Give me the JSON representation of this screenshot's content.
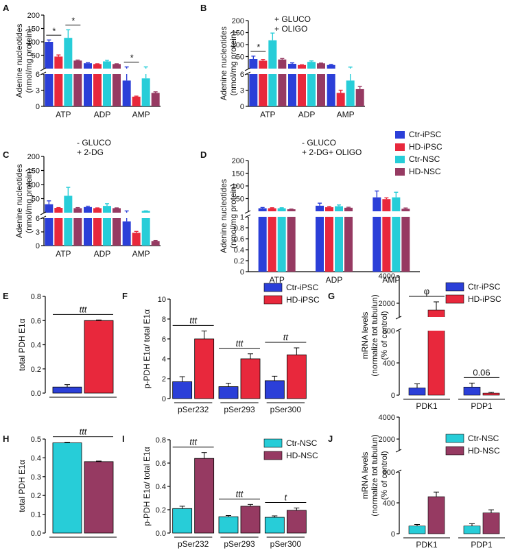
{
  "colors": {
    "ctr_ipsc": "#2b3fd8",
    "hd_ipsc": "#e8283c",
    "ctr_nsc": "#27cdd8",
    "hd_nsc": "#963a62",
    "axis": "#000000"
  },
  "legend_top": {
    "items": [
      "Ctr-iPSC",
      "HD-iPSC",
      "Ctr-NSC",
      "HD-NSC"
    ]
  },
  "chart_data": [
    {
      "id": "A",
      "panel_label": "A",
      "type": "bar",
      "ylabel_line1": "Adenine nucleotides",
      "ylabel_line2": "(nmol/mg protein)",
      "annotation_line1": "",
      "annotation_line2": "",
      "categories": [
        "ATP",
        "ADP",
        "AMP"
      ],
      "series": [
        {
          "name": "Ctr-iPSC",
          "values": [
            100,
            20,
            4.8
          ],
          "errors": [
            7,
            2,
            1.5
          ]
        },
        {
          "name": "HD-iPSC",
          "values": [
            45,
            17,
            1.8
          ],
          "errors": [
            6,
            1,
            0.1
          ]
        },
        {
          "name": "Ctr-NSC",
          "values": [
            115,
            27,
            5.2
          ],
          "errors": [
            30,
            4,
            1.2
          ]
        },
        {
          "name": "HD-NSC",
          "values": [
            30,
            17,
            2.5
          ],
          "errors": [
            2,
            1,
            0.2
          ]
        }
      ],
      "yaxis_broken": true,
      "upper_ticks": [
        "50",
        "100",
        "150",
        "200"
      ],
      "lower_ticks": [
        "0",
        "3",
        "6"
      ],
      "significance": [
        {
          "label": "*",
          "category": "ATP",
          "from": "Ctr-iPSC",
          "to": "HD-iPSC"
        },
        {
          "label": "*",
          "category": "ATP",
          "from": "Ctr-NSC",
          "to": "HD-NSC"
        },
        {
          "label": "*",
          "category": "AMP",
          "from": "Ctr-iPSC",
          "to": "HD-iPSC"
        }
      ]
    },
    {
      "id": "B",
      "panel_label": "B",
      "type": "bar",
      "ylabel_line1": "Adenine nucleotides",
      "ylabel_line2": "(nmol/mg protein)",
      "annotation_line1": "+ GLUCO",
      "annotation_line2": "+ OLIGO",
      "categories": [
        "ATP",
        "ADP",
        "AMP"
      ],
      "series": [
        {
          "name": "Ctr-iPSC",
          "values": [
            40,
            20,
            15
          ],
          "errors": [
            12,
            4,
            3
          ]
        },
        {
          "name": "HD-iPSC",
          "values": [
            33,
            15,
            2.5
          ],
          "errors": [
            5,
            1,
            0.5
          ]
        },
        {
          "name": "Ctr-NSC",
          "values": [
            118,
            28,
            4.8
          ],
          "errors": [
            30,
            4,
            1.5
          ]
        },
        {
          "name": "HD-NSC",
          "values": [
            38,
            22,
            3.2
          ],
          "errors": [
            4,
            1,
            0.5
          ]
        }
      ],
      "yaxis_broken": true,
      "upper_ticks": [
        "50",
        "100",
        "150",
        "200"
      ],
      "lower_ticks": [
        "0",
        "3",
        "6"
      ],
      "significance": [
        {
          "label": "*",
          "category": "ATP",
          "from": "Ctr-iPSC",
          "to": "HD-iPSC"
        }
      ]
    },
    {
      "id": "C",
      "panel_label": "C",
      "type": "bar",
      "ylabel_line1": "Adenine nucleotides",
      "ylabel_line2": "(nmol/mg protein)",
      "annotation_line1": "- GLUCO",
      "annotation_line2": "+ 2-DG",
      "categories": [
        "ATP",
        "ADP",
        "AMP"
      ],
      "series": [
        {
          "name": "Ctr-iPSC",
          "values": [
            30,
            20,
            5.3
          ],
          "errors": [
            12,
            3,
            0.9
          ]
        },
        {
          "name": "HD-iPSC",
          "values": [
            17,
            16,
            2.8
          ],
          "errors": [
            1,
            1,
            0.3
          ]
        },
        {
          "name": "Ctr-NSC",
          "values": [
            60,
            24,
            6.2
          ],
          "errors": [
            30,
            8,
            0.3
          ]
        },
        {
          "name": "HD-NSC",
          "values": [
            16,
            16,
            1.0
          ],
          "errors": [
            2,
            1,
            0.1
          ]
        }
      ],
      "yaxis_broken": true,
      "upper_ticks": [
        "50",
        "100",
        "150",
        "200"
      ],
      "lower_ticks": [
        "0",
        "3",
        "6"
      ],
      "significance": []
    },
    {
      "id": "D",
      "panel_label": "D",
      "type": "bar",
      "ylabel_line1": "Adenine nucleotides",
      "ylabel_line2": "(nmol/mg protein)",
      "annotation_line1": "- GLUCO",
      "annotation_line2": "+ 2-DG+ OLIGO",
      "categories": [
        "ATP",
        "ADP",
        "AMP"
      ],
      "series": [
        {
          "name": "Ctr-iPSC",
          "values": [
            12,
            22,
            55
          ],
          "errors": [
            3,
            10,
            25
          ]
        },
        {
          "name": "HD-iPSC",
          "values": [
            12,
            16,
            48
          ],
          "errors": [
            2,
            3,
            5
          ]
        },
        {
          "name": "Ctr-NSC",
          "values": [
            12,
            20,
            55
          ],
          "errors": [
            2,
            5,
            20
          ]
        },
        {
          "name": "HD-NSC",
          "values": [
            8,
            14,
            10
          ],
          "errors": [
            1,
            2,
            3
          ]
        }
      ],
      "yaxis_broken": true,
      "upper_ticks": [
        "50",
        "100",
        "150",
        "200"
      ],
      "lower_ticks": [
        "0",
        "0.2",
        "0.4",
        "0.6",
        "0.8",
        "1"
      ],
      "significance": []
    },
    {
      "id": "E",
      "panel_label": "E",
      "type": "bar",
      "ylabel_line1": "total PDH E1α",
      "categories": [
        ""
      ],
      "yrange": [
        0,
        0.8
      ],
      "ticks": [
        "0.0",
        "0.2",
        "0.4",
        "0.6",
        "0.8"
      ],
      "series": [
        {
          "name": "Ctr-iPSC",
          "values": [
            0.05
          ],
          "errors": [
            0.02
          ]
        },
        {
          "name": "HD-iPSC",
          "values": [
            0.6
          ],
          "errors": [
            0.005
          ]
        }
      ],
      "significance": [
        {
          "label": "ttt"
        }
      ]
    },
    {
      "id": "F",
      "panel_label": "F",
      "type": "bar",
      "ylabel_line1": "p-PDH E1α/ total E1α",
      "categories": [
        "pSer232",
        "pSer293",
        "pSer300"
      ],
      "yrange": [
        0,
        10
      ],
      "ticks": [
        "0",
        "2",
        "4",
        "6",
        "8",
        "10"
      ],
      "series": [
        {
          "name": "Ctr-iPSC",
          "values": [
            1.7,
            1.2,
            1.8
          ],
          "errors": [
            0.5,
            0.35,
            0.45
          ]
        },
        {
          "name": "HD-iPSC",
          "values": [
            6.0,
            4.0,
            4.4
          ],
          "errors": [
            0.8,
            0.5,
            0.7
          ]
        }
      ],
      "significance": [
        {
          "label": "ttt"
        },
        {
          "label": "ttt"
        },
        {
          "label": "tt"
        }
      ]
    },
    {
      "id": "G",
      "panel_label": "G",
      "type": "bar",
      "ylabel_line1": "mRNA levels",
      "ylabel_line2": "(normalize tot tubulun)",
      "ylabel_line3": "(% of control)",
      "categories": [
        "PDK1",
        "PDP1"
      ],
      "yaxis_broken": true,
      "upper_ticks": [
        "2000",
        "4000"
      ],
      "lower_ticks": [
        "0",
        "400",
        "800"
      ],
      "series": [
        {
          "name": "Ctr-iPSC",
          "values": [
            90,
            100
          ],
          "errors": [
            50,
            50
          ]
        },
        {
          "name": "HD-iPSC",
          "values": [
            1500,
            25
          ],
          "errors": [
            600,
            10
          ]
        }
      ],
      "significance": [
        {
          "label": "φ"
        },
        {
          "label": "0.06"
        }
      ]
    },
    {
      "id": "H",
      "panel_label": "H",
      "type": "bar",
      "ylabel_line1": "total PDH E1α",
      "categories": [
        ""
      ],
      "yrange": [
        0,
        0.5
      ],
      "ticks": [
        "0.0",
        "0.1",
        "0.2",
        "0.3",
        "0.4",
        "0.5"
      ],
      "series": [
        {
          "name": "Ctr-NSC",
          "values": [
            0.48
          ],
          "errors": [
            0.003
          ]
        },
        {
          "name": "HD-NSC",
          "values": [
            0.38
          ],
          "errors": [
            0.003
          ]
        }
      ],
      "significance": [
        {
          "label": "ttt"
        }
      ]
    },
    {
      "id": "I",
      "panel_label": "I",
      "type": "bar",
      "ylabel_line1": "p-PDH E1α/ total E1α",
      "categories": [
        "pSer232",
        "pSer293",
        "pSer300"
      ],
      "yrange": [
        0,
        0.8
      ],
      "ticks": [
        "0.0",
        "0.2",
        "0.4",
        "0.6",
        "0.8"
      ],
      "series": [
        {
          "name": "Ctr-NSC",
          "values": [
            0.21,
            0.14,
            0.135
          ],
          "errors": [
            0.02,
            0.01,
            0.012
          ]
        },
        {
          "name": "HD-NSC",
          "values": [
            0.64,
            0.23,
            0.195
          ],
          "errors": [
            0.05,
            0.015,
            0.02
          ]
        }
      ],
      "significance": [
        {
          "label": "ttt"
        },
        {
          "label": "ttt"
        },
        {
          "label": "t"
        }
      ]
    },
    {
      "id": "J",
      "panel_label": "J",
      "type": "bar",
      "ylabel_line1": "mRNA levels",
      "ylabel_line2": "(normalize tot tubulun)",
      "ylabel_line3": "(% of control)",
      "categories": [
        "PDK1",
        "PDP1"
      ],
      "yaxis_broken": true,
      "upper_ticks": [
        "2000",
        "4000"
      ],
      "lower_ticks": [
        "0",
        "400",
        "800"
      ],
      "series": [
        {
          "name": "Ctr-NSC",
          "values": [
            100,
            100
          ],
          "errors": [
            20,
            30
          ]
        },
        {
          "name": "HD-NSC",
          "values": [
            480,
            270
          ],
          "errors": [
            60,
            40
          ]
        }
      ],
      "significance": []
    }
  ],
  "legend_F": {
    "items": [
      "Ctr-iPSC",
      "HD-iPSC"
    ]
  },
  "legend_G": {
    "items": [
      "Ctr-iPSC",
      "HD-iPSC"
    ]
  },
  "legend_I": {
    "items": [
      "Ctr-NSC",
      "HD-NSC"
    ]
  },
  "legend_J": {
    "items": [
      "Ctr-NSC",
      "HD-NSC"
    ]
  }
}
